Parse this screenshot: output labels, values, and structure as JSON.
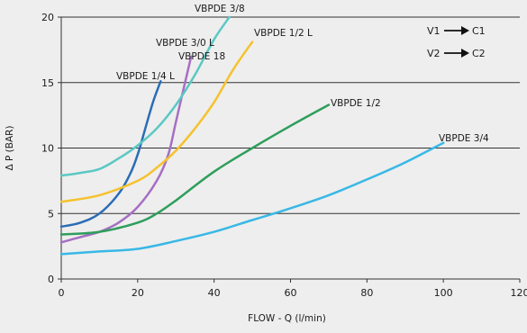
{
  "chart_data": {
    "type": "line",
    "title": "",
    "xlabel": "FLOW - Q (l/min)",
    "ylabel": "Δ P (BAR)",
    "xlim": [
      0,
      120
    ],
    "ylim": [
      0,
      20
    ],
    "xticks": [
      0,
      20,
      40,
      60,
      80,
      100,
      120
    ],
    "yticks": [
      0,
      5,
      10,
      15,
      20
    ],
    "grid": "horizontal",
    "legend": "top-right",
    "legend_entries": [
      {
        "from": "V1",
        "to": "C1"
      },
      {
        "from": "V2",
        "to": "C2"
      }
    ],
    "series": [
      {
        "name": "VBPDE 1/4 L",
        "color": "#2b6db5",
        "points": [
          [
            0,
            4
          ],
          [
            5,
            4.3
          ],
          [
            10,
            5
          ],
          [
            15,
            6.5
          ],
          [
            18,
            8
          ],
          [
            20,
            9.5
          ],
          [
            22,
            11.5
          ],
          [
            24,
            13.5
          ],
          [
            26,
            15.1
          ]
        ]
      },
      {
        "name": "VBPDE 3/0 L VBPDE 18",
        "color": "#a66fc3",
        "points": [
          [
            0,
            2.8
          ],
          [
            5,
            3.2
          ],
          [
            10,
            3.6
          ],
          [
            15,
            4.3
          ],
          [
            20,
            5.5
          ],
          [
            25,
            7.5
          ],
          [
            28,
            9.5
          ],
          [
            30,
            12
          ],
          [
            32,
            14.5
          ],
          [
            34,
            17
          ]
        ]
      },
      {
        "name": "VBPDE 3/8",
        "color": "#5bc8c3",
        "points": [
          [
            0,
            7.9
          ],
          [
            5,
            8.1
          ],
          [
            10,
            8.4
          ],
          [
            15,
            9.2
          ],
          [
            20,
            10.2
          ],
          [
            25,
            11.5
          ],
          [
            30,
            13.3
          ],
          [
            35,
            15.6
          ],
          [
            40,
            18.3
          ],
          [
            44,
            20
          ]
        ]
      },
      {
        "name": "VBPDE 1/2 L",
        "color": "#f5c22e",
        "points": [
          [
            0,
            5.9
          ],
          [
            10,
            6.4
          ],
          [
            20,
            7.5
          ],
          [
            25,
            8.5
          ],
          [
            30,
            9.8
          ],
          [
            35,
            11.5
          ],
          [
            40,
            13.5
          ],
          [
            45,
            16
          ],
          [
            50,
            18.1
          ]
        ]
      },
      {
        "name": "VBPDE 1/2",
        "color": "#2e9e5c",
        "points": [
          [
            0,
            3.4
          ],
          [
            10,
            3.6
          ],
          [
            20,
            4.3
          ],
          [
            25,
            5
          ],
          [
            30,
            6
          ],
          [
            40,
            8.2
          ],
          [
            50,
            10
          ],
          [
            60,
            11.7
          ],
          [
            70,
            13.3
          ]
        ]
      },
      {
        "name": "VBPDE 3/4",
        "color": "#38b8e6",
        "points": [
          [
            0,
            1.9
          ],
          [
            10,
            2.1
          ],
          [
            20,
            2.3
          ],
          [
            30,
            2.9
          ],
          [
            40,
            3.6
          ],
          [
            50,
            4.5
          ],
          [
            60,
            5.4
          ],
          [
            70,
            6.4
          ],
          [
            80,
            7.6
          ],
          [
            90,
            8.9
          ],
          [
            100,
            10.4
          ]
        ]
      }
    ]
  }
}
